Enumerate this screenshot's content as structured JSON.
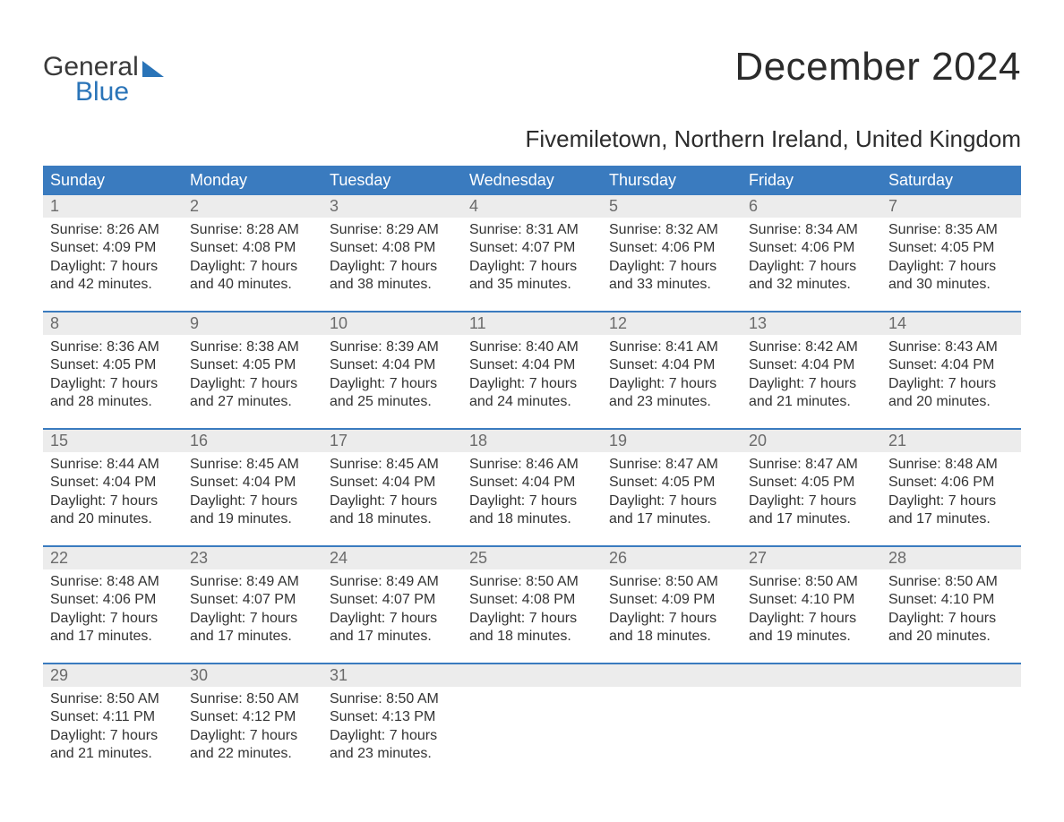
{
  "logo": {
    "line1": "General",
    "line2": "Blue"
  },
  "title": "December 2024",
  "location": "Fivemiletown, Northern Ireland, United Kingdom",
  "colors": {
    "header_bg": "#3a7bbf",
    "header_text": "#ffffff",
    "daynum_bg": "#ececec",
    "daynum_text": "#6b6b6b",
    "body_text": "#333333",
    "rule": "#3a7bbf",
    "logo_gray": "#3a3a3a",
    "logo_blue": "#2a74b8"
  },
  "day_headers": [
    "Sunday",
    "Monday",
    "Tuesday",
    "Wednesday",
    "Thursday",
    "Friday",
    "Saturday"
  ],
  "weeks": [
    [
      {
        "n": "1",
        "sr": "8:26 AM",
        "ss": "4:09 PM",
        "dl": "7 hours and 42 minutes."
      },
      {
        "n": "2",
        "sr": "8:28 AM",
        "ss": "4:08 PM",
        "dl": "7 hours and 40 minutes."
      },
      {
        "n": "3",
        "sr": "8:29 AM",
        "ss": "4:08 PM",
        "dl": "7 hours and 38 minutes."
      },
      {
        "n": "4",
        "sr": "8:31 AM",
        "ss": "4:07 PM",
        "dl": "7 hours and 35 minutes."
      },
      {
        "n": "5",
        "sr": "8:32 AM",
        "ss": "4:06 PM",
        "dl": "7 hours and 33 minutes."
      },
      {
        "n": "6",
        "sr": "8:34 AM",
        "ss": "4:06 PM",
        "dl": "7 hours and 32 minutes."
      },
      {
        "n": "7",
        "sr": "8:35 AM",
        "ss": "4:05 PM",
        "dl": "7 hours and 30 minutes."
      }
    ],
    [
      {
        "n": "8",
        "sr": "8:36 AM",
        "ss": "4:05 PM",
        "dl": "7 hours and 28 minutes."
      },
      {
        "n": "9",
        "sr": "8:38 AM",
        "ss": "4:05 PM",
        "dl": "7 hours and 27 minutes."
      },
      {
        "n": "10",
        "sr": "8:39 AM",
        "ss": "4:04 PM",
        "dl": "7 hours and 25 minutes."
      },
      {
        "n": "11",
        "sr": "8:40 AM",
        "ss": "4:04 PM",
        "dl": "7 hours and 24 minutes."
      },
      {
        "n": "12",
        "sr": "8:41 AM",
        "ss": "4:04 PM",
        "dl": "7 hours and 23 minutes."
      },
      {
        "n": "13",
        "sr": "8:42 AM",
        "ss": "4:04 PM",
        "dl": "7 hours and 21 minutes."
      },
      {
        "n": "14",
        "sr": "8:43 AM",
        "ss": "4:04 PM",
        "dl": "7 hours and 20 minutes."
      }
    ],
    [
      {
        "n": "15",
        "sr": "8:44 AM",
        "ss": "4:04 PM",
        "dl": "7 hours and 20 minutes."
      },
      {
        "n": "16",
        "sr": "8:45 AM",
        "ss": "4:04 PM",
        "dl": "7 hours and 19 minutes."
      },
      {
        "n": "17",
        "sr": "8:45 AM",
        "ss": "4:04 PM",
        "dl": "7 hours and 18 minutes."
      },
      {
        "n": "18",
        "sr": "8:46 AM",
        "ss": "4:04 PM",
        "dl": "7 hours and 18 minutes."
      },
      {
        "n": "19",
        "sr": "8:47 AM",
        "ss": "4:05 PM",
        "dl": "7 hours and 17 minutes."
      },
      {
        "n": "20",
        "sr": "8:47 AM",
        "ss": "4:05 PM",
        "dl": "7 hours and 17 minutes."
      },
      {
        "n": "21",
        "sr": "8:48 AM",
        "ss": "4:06 PM",
        "dl": "7 hours and 17 minutes."
      }
    ],
    [
      {
        "n": "22",
        "sr": "8:48 AM",
        "ss": "4:06 PM",
        "dl": "7 hours and 17 minutes."
      },
      {
        "n": "23",
        "sr": "8:49 AM",
        "ss": "4:07 PM",
        "dl": "7 hours and 17 minutes."
      },
      {
        "n": "24",
        "sr": "8:49 AM",
        "ss": "4:07 PM",
        "dl": "7 hours and 17 minutes."
      },
      {
        "n": "25",
        "sr": "8:50 AM",
        "ss": "4:08 PM",
        "dl": "7 hours and 18 minutes."
      },
      {
        "n": "26",
        "sr": "8:50 AM",
        "ss": "4:09 PM",
        "dl": "7 hours and 18 minutes."
      },
      {
        "n": "27",
        "sr": "8:50 AM",
        "ss": "4:10 PM",
        "dl": "7 hours and 19 minutes."
      },
      {
        "n": "28",
        "sr": "8:50 AM",
        "ss": "4:10 PM",
        "dl": "7 hours and 20 minutes."
      }
    ],
    [
      {
        "n": "29",
        "sr": "8:50 AM",
        "ss": "4:11 PM",
        "dl": "7 hours and 21 minutes."
      },
      {
        "n": "30",
        "sr": "8:50 AM",
        "ss": "4:12 PM",
        "dl": "7 hours and 22 minutes."
      },
      {
        "n": "31",
        "sr": "8:50 AM",
        "ss": "4:13 PM",
        "dl": "7 hours and 23 minutes."
      },
      null,
      null,
      null,
      null
    ]
  ],
  "labels": {
    "sunrise": "Sunrise:",
    "sunset": "Sunset:",
    "daylight": "Daylight:"
  }
}
